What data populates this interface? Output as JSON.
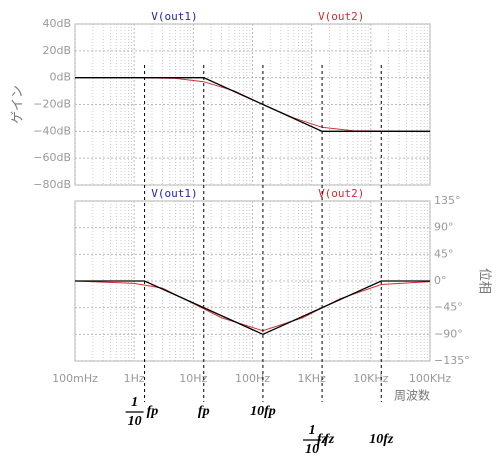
{
  "x_axis": {
    "log": true,
    "label": "周波数",
    "xlim": [
      0.1,
      100000
    ],
    "xticks": [
      {
        "value": 0.1,
        "label": "100mHz"
      },
      {
        "value": 1,
        "label": "1Hz"
      },
      {
        "value": 10,
        "label": "10Hz"
      },
      {
        "value": 100,
        "label": "100Hz"
      },
      {
        "value": 1000,
        "label": "1KHz"
      },
      {
        "value": 10000,
        "label": "10KHz"
      },
      {
        "value": 100000,
        "label": "100KHz"
      }
    ]
  },
  "chart_data": [
    {
      "type": "line",
      "ylabel": "ゲイン",
      "y_side": "left",
      "grid": true,
      "ylim": [
        -80,
        40
      ],
      "yticks": [
        {
          "value": 40,
          "label": "40dB"
        },
        {
          "value": 20,
          "label": "20dB"
        },
        {
          "value": 0,
          "label": "0dB"
        },
        {
          "value": -20,
          "label": "−20dB"
        },
        {
          "value": -40,
          "label": "−40dB"
        },
        {
          "value": -60,
          "label": "−60dB"
        },
        {
          "value": -80,
          "label": "−80dB"
        }
      ],
      "series": [
        {
          "name": "V(out1)",
          "color": "#000000",
          "label_color": "#2323b4",
          "x": [
            0.1,
            15,
            1500,
            100000
          ],
          "values": [
            0,
            0,
            -40,
            -40
          ]
        },
        {
          "name": "V(out2)",
          "color": "#d03030",
          "label_color": "#d03030",
          "x": [
            0.1,
            1,
            5,
            15,
            50,
            150,
            500,
            1500,
            5000,
            100000
          ],
          "values": [
            0,
            0,
            -0.5,
            -3,
            -10,
            -20,
            -30,
            -37,
            -39.6,
            -40
          ]
        }
      ]
    },
    {
      "type": "line",
      "ylabel": "位相",
      "y_side": "right",
      "grid": true,
      "ylim": [
        -135,
        135
      ],
      "yticks": [
        {
          "value": 135,
          "label": "135°"
        },
        {
          "value": 90,
          "label": "90°"
        },
        {
          "value": 45,
          "label": "45°"
        },
        {
          "value": 0,
          "label": "0°"
        },
        {
          "value": -45,
          "label": "−45°"
        },
        {
          "value": -90,
          "label": "−90°"
        },
        {
          "value": -135,
          "label": "−135°"
        }
      ],
      "series": [
        {
          "name": "V(out1)",
          "color": "#000000",
          "label_color": "#2323b4",
          "x": [
            0.1,
            1.5,
            150,
            15000,
            100000
          ],
          "values": [
            0,
            0,
            -90,
            0,
            0
          ]
        },
        {
          "name": "V(out2)",
          "color": "#d03030",
          "label_color": "#d03030",
          "x": [
            0.1,
            1,
            3,
            10,
            30,
            150,
            700,
            3000,
            15000,
            100000
          ],
          "values": [
            0,
            -4,
            -12,
            -38,
            -62,
            -84,
            -62,
            -30,
            -6,
            -1
          ]
        }
      ]
    }
  ],
  "markers": [
    {
      "x": 1.5,
      "numerator": "1",
      "denominator": "10",
      "text": "fp"
    },
    {
      "x": 15,
      "text": "fp"
    },
    {
      "x": 150,
      "text": "10fp"
    },
    {
      "x": 1500,
      "numerator": "1",
      "denominator": "10",
      "text": "fz"
    },
    {
      "x": 1500,
      "text": "fz"
    },
    {
      "x": 15000,
      "text": "10fz"
    }
  ]
}
